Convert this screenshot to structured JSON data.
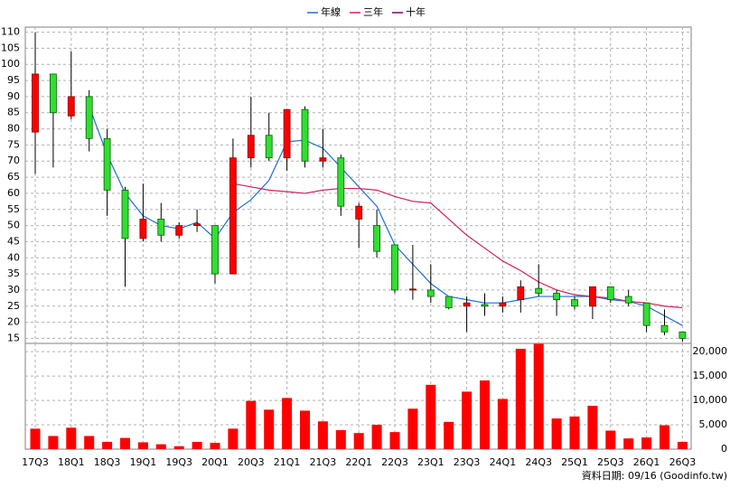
{
  "chart_data": [
    {
      "type": "candlestick",
      "categories": [
        "17Q3",
        null,
        "18Q1",
        null,
        "18Q3",
        null,
        "19Q1",
        null,
        "19Q3",
        null,
        "20Q1",
        null,
        "20Q3",
        null,
        "21Q1",
        null,
        "21Q3",
        null,
        "22Q1",
        null,
        "22Q3",
        null,
        "23Q1",
        null,
        "23Q3",
        null,
        "24Q1",
        null,
        "24Q3",
        null,
        "25Q1",
        null,
        "25Q3",
        null,
        "26Q1",
        null,
        "26Q3"
      ],
      "open": [
        79,
        97,
        84,
        90,
        77,
        61,
        46,
        52,
        47,
        50,
        50,
        35,
        71,
        78,
        71,
        86,
        70,
        71,
        52,
        50,
        44,
        30,
        30,
        28,
        25,
        25.5,
        25,
        27,
        30.5,
        29,
        27,
        25,
        31,
        28,
        26,
        19,
        17
      ],
      "high": [
        110,
        97,
        104,
        92,
        80,
        62,
        63,
        57,
        51,
        55,
        50,
        77,
        90,
        85,
        86,
        87,
        80,
        72,
        57,
        55,
        44,
        44,
        38,
        28,
        28,
        29,
        28,
        33,
        38,
        30,
        28,
        31,
        31,
        30,
        26,
        24,
        17
      ],
      "low": [
        66,
        68,
        83,
        73,
        53,
        31,
        45,
        45,
        46,
        48,
        32,
        35,
        68,
        70,
        67,
        68,
        68,
        53,
        43,
        40,
        29,
        27,
        26,
        24,
        17,
        22,
        23,
        23,
        28,
        22,
        24,
        21,
        26,
        25,
        17,
        16,
        14
      ],
      "close": [
        97,
        85,
        90,
        77,
        61,
        46,
        52,
        47,
        50,
        50.5,
        35,
        71,
        78,
        71,
        86,
        70,
        71,
        56,
        56,
        42,
        30,
        30.3,
        28,
        24.5,
        26,
        25,
        26,
        31,
        29,
        27,
        25,
        31,
        27,
        26,
        19,
        17,
        15
      ],
      "up_color": "#ff0000",
      "down_color": "#33dd33",
      "series": [
        {
          "name": "年線",
          "color": "#1f6fd0",
          "values": [
            null,
            null,
            null,
            87,
            72,
            60,
            53,
            50,
            49,
            51,
            46,
            54,
            58,
            64,
            76,
            76.5,
            74,
            68,
            62,
            56,
            44,
            38,
            32,
            28,
            27,
            26,
            26,
            27,
            28,
            28,
            28,
            28,
            27,
            26.5,
            25,
            22,
            19
          ]
        },
        {
          "name": "三年",
          "color": "#d0205a",
          "values": [
            null,
            null,
            null,
            null,
            null,
            null,
            null,
            null,
            null,
            null,
            null,
            63,
            62,
            61,
            60.5,
            60,
            61,
            61.5,
            61.5,
            61,
            59,
            57.5,
            57,
            52,
            47,
            43,
            39,
            36,
            32.5,
            30,
            28.5,
            28,
            27.5,
            26.5,
            26,
            25,
            24.5
          ]
        },
        {
          "name": "十年",
          "color": "#800060",
          "values": [
            null,
            null,
            null,
            null,
            null,
            null,
            null,
            null,
            null,
            null,
            null,
            null,
            null,
            null,
            null,
            null,
            null,
            null,
            null,
            null,
            null,
            null,
            null,
            null,
            null,
            null,
            null,
            null,
            null,
            null,
            null,
            null,
            null,
            null,
            null,
            null,
            null
          ]
        }
      ],
      "ylim": [
        14,
        111
      ],
      "yticks": [
        15,
        20,
        25,
        30,
        35,
        40,
        45,
        50,
        55,
        60,
        65,
        70,
        75,
        80,
        85,
        90,
        95,
        100,
        105,
        110
      ],
      "grid": true
    },
    {
      "type": "bar",
      "values": [
        4200,
        2700,
        4400,
        2700,
        1500,
        2300,
        1400,
        1000,
        600,
        1500,
        1300,
        4200,
        9900,
        8100,
        10500,
        7900,
        5700,
        3900,
        3300,
        5000,
        3500,
        8300,
        13200,
        5600,
        11800,
        14100,
        10300,
        20600,
        21600,
        6300,
        6700,
        8900,
        3800,
        2200,
        2400,
        4900,
        1500
      ],
      "color": "#ff0000",
      "ylim": [
        0,
        21700
      ],
      "yticks": [
        0,
        {
          "value": 5000,
          "label": "5,000"
        },
        {
          "value": 10000,
          "label": "10,000"
        },
        {
          "value": 15000,
          "label": "15,000"
        },
        {
          "value": 20000,
          "label": "20,000"
        }
      ],
      "grid": true,
      "footnote": "資料日期: 09/16  (Goodinfo.tw)"
    }
  ]
}
